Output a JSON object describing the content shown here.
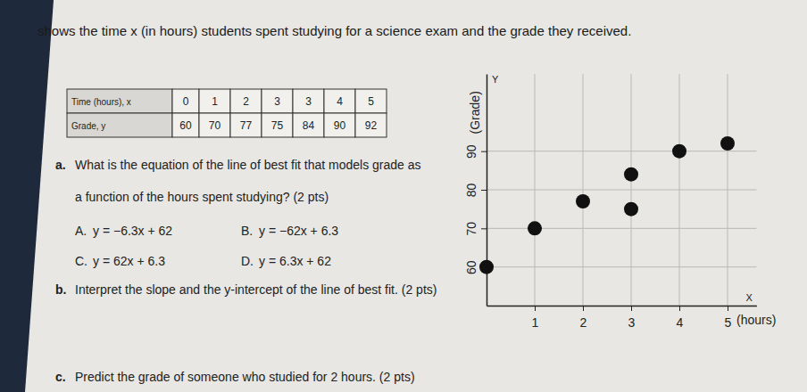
{
  "header": {
    "text": "shows the time x (in hours) students spent studying for a science exam and the grade they received."
  },
  "table": {
    "rows": [
      [
        "Time (hours), x",
        0,
        1,
        2,
        3,
        3,
        4,
        5
      ],
      [
        "Grade, y",
        60,
        70,
        77,
        75,
        84,
        90,
        92
      ]
    ]
  },
  "questions": [
    {
      "label": "a.",
      "lines": [
        "What is the equation of the line of best fit that models grade as",
        "a function of the hours spent studying? (2 pts)"
      ],
      "options": [
        {
          "label": "A.",
          "text": "y = −6.3x + 62"
        },
        {
          "label": "B.",
          "text": "y = −62x + 6.3"
        },
        {
          "label": "C.",
          "text": "y = 62x + 6.3"
        },
        {
          "label": "D.",
          "text": "y = 6.3x + 62"
        }
      ]
    },
    {
      "label": "b.",
      "lines": [
        "Interpret the slope and the y-intercept of the line of best fit. (2 pts)"
      ]
    },
    {
      "label": "c.",
      "lines": [
        "Predict the grade of someone who studied for 2 hours. (2 pts)"
      ]
    }
  ],
  "chart_data": {
    "type": "scatter",
    "x": [
      0,
      1,
      2,
      3,
      3,
      4,
      5
    ],
    "values": [
      60,
      70,
      77,
      75,
      84,
      90,
      92
    ],
    "x_label": "(hours)",
    "y_label": "(Grade)",
    "annotations": [
      "Y",
      "X"
    ],
    "xlim": [
      0,
      5.6
    ],
    "ylim": [
      50,
      110
    ],
    "xticks": [
      1,
      2,
      3,
      4,
      5
    ],
    "yticks": [
      60,
      70,
      80,
      90
    ],
    "grid": true,
    "color": "#111111",
    "marker": "circle"
  }
}
